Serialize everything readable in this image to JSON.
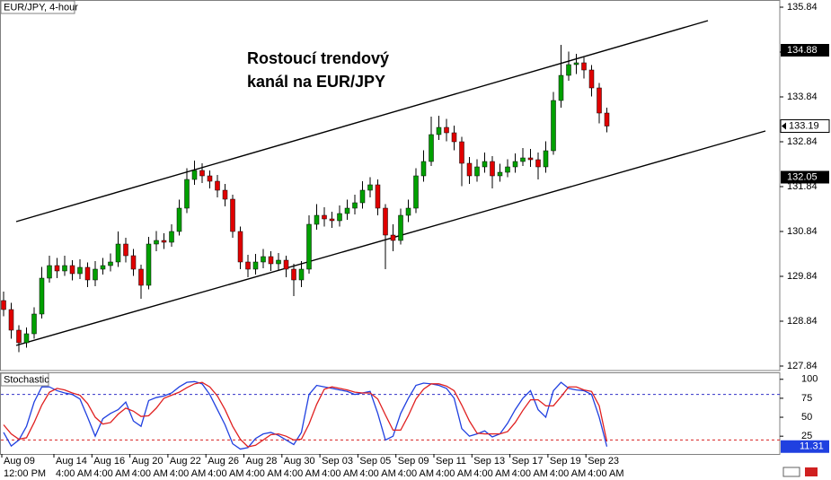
{
  "chart_data": [
    {
      "type": "candlestick",
      "title": "EUR/JPY, 4-hour",
      "annotation": [
        "Rostoucí trendový",
        "kanál na EUR/JPY"
      ],
      "up_color": "#00a000",
      "down_color": "#e00000",
      "ylim": [
        127.74,
        136.0
      ],
      "yticks": [
        135.84,
        134.84,
        133.84,
        132.84,
        131.84,
        130.84,
        129.84,
        128.84,
        127.84
      ],
      "price_markers": [
        134.88,
        132.05
      ],
      "open": [
        129.3,
        129.1,
        128.64,
        128.36,
        128.56,
        129.0,
        129.8,
        130.08,
        129.96,
        130.08,
        129.9,
        130.04,
        129.76,
        130.0,
        130.08,
        130.16,
        130.56,
        130.3,
        130.0,
        129.64,
        130.56,
        130.64,
        130.6,
        130.84,
        131.36,
        132.0,
        132.2,
        132.08,
        131.96,
        131.76,
        131.56,
        130.84,
        130.16,
        130.0,
        130.16,
        130.28,
        130.12,
        130.2,
        130.0,
        129.76,
        130.0,
        131.0,
        131.2,
        131.12,
        131.08,
        131.24,
        131.36,
        131.48,
        131.76,
        131.88,
        131.36,
        130.76,
        130.64,
        131.2,
        131.36,
        132.08,
        132.4,
        133.0,
        133.16,
        133.04,
        132.84,
        132.36,
        132.08,
        132.28,
        132.4,
        132.08,
        132.16,
        132.28,
        132.4,
        132.48,
        132.44,
        132.28,
        132.64,
        133.76,
        134.32,
        134.56,
        134.6,
        134.44,
        134.04,
        133.48
      ],
      "high": [
        129.5,
        129.25,
        128.75,
        128.7,
        129.15,
        130.05,
        130.3,
        130.25,
        130.3,
        130.2,
        130.22,
        130.15,
        130.18,
        130.25,
        130.35,
        130.84,
        130.7,
        130.45,
        130.1,
        130.72,
        130.85,
        130.8,
        131.0,
        131.55,
        132.25,
        132.42,
        132.36,
        132.2,
        132.1,
        131.9,
        131.66,
        130.95,
        130.32,
        130.34,
        130.45,
        130.4,
        130.36,
        130.3,
        130.12,
        130.18,
        131.2,
        131.45,
        131.38,
        131.28,
        131.42,
        131.55,
        131.66,
        131.96,
        132.05,
        132.0,
        131.45,
        131.0,
        131.35,
        131.55,
        132.25,
        132.65,
        133.4,
        133.42,
        133.35,
        133.2,
        132.95,
        132.5,
        132.45,
        132.6,
        132.52,
        132.35,
        132.45,
        132.58,
        132.7,
        132.68,
        132.6,
        132.85,
        133.95,
        135.0,
        134.85,
        134.8,
        134.72,
        134.55,
        134.15,
        133.6
      ],
      "low": [
        128.95,
        128.45,
        128.15,
        128.25,
        128.45,
        128.9,
        129.7,
        129.8,
        129.85,
        129.75,
        129.78,
        129.6,
        129.62,
        129.88,
        129.95,
        130.05,
        130.15,
        129.85,
        129.34,
        129.55,
        130.4,
        130.45,
        130.5,
        130.75,
        131.25,
        131.88,
        131.92,
        131.8,
        131.6,
        131.4,
        130.7,
        130.0,
        129.82,
        129.88,
        130.02,
        129.96,
        129.98,
        129.82,
        129.4,
        129.6,
        129.9,
        130.88,
        130.95,
        130.92,
        130.95,
        131.1,
        131.22,
        131.35,
        131.6,
        131.2,
        130.0,
        130.4,
        130.55,
        131.05,
        131.25,
        131.95,
        132.3,
        132.88,
        132.85,
        132.65,
        131.85,
        131.9,
        131.95,
        132.15,
        131.8,
        131.95,
        132.05,
        132.15,
        132.3,
        132.28,
        132.0,
        132.15,
        132.55,
        133.6,
        134.2,
        134.35,
        134.25,
        133.85,
        133.25,
        133.05
      ],
      "close": [
        129.1,
        128.64,
        128.36,
        128.56,
        129.0,
        129.8,
        130.08,
        129.96,
        130.08,
        129.9,
        130.04,
        129.76,
        130.0,
        130.08,
        130.16,
        130.56,
        130.3,
        130.0,
        129.64,
        130.56,
        130.64,
        130.6,
        130.84,
        131.36,
        132.0,
        132.2,
        132.08,
        131.96,
        131.76,
        131.56,
        130.84,
        130.16,
        130.0,
        130.16,
        130.28,
        130.12,
        130.2,
        130.0,
        129.76,
        130.0,
        131.0,
        131.2,
        131.12,
        131.08,
        131.24,
        131.36,
        131.48,
        131.76,
        131.88,
        131.36,
        130.76,
        130.64,
        131.2,
        131.36,
        132.08,
        132.4,
        133.0,
        133.16,
        133.04,
        132.84,
        132.36,
        132.08,
        132.28,
        132.4,
        132.08,
        132.16,
        132.28,
        132.4,
        132.48,
        132.44,
        132.28,
        132.64,
        133.76,
        134.32,
        134.56,
        134.6,
        134.44,
        134.04,
        133.48,
        133.19
      ]
    },
    {
      "type": "line",
      "title": "Stochastic",
      "ylim": [
        -2,
        108
      ],
      "yticks": [
        100,
        75,
        50,
        25
      ],
      "levels": [
        {
          "value": 80,
          "color": "#3030c8"
        },
        {
          "value": 20,
          "color": "#d82020"
        }
      ],
      "series": [
        {
          "color": "#2040e0",
          "values": [
            30,
            12,
            20,
            38,
            70,
            90,
            90,
            85,
            82,
            80,
            74,
            50,
            25,
            48,
            55,
            60,
            70,
            45,
            38,
            72,
            76,
            78,
            82,
            90,
            96,
            97,
            94,
            80,
            60,
            40,
            15,
            8,
            10,
            22,
            28,
            30,
            26,
            20,
            14,
            30,
            80,
            92,
            90,
            88,
            86,
            84,
            80,
            82,
            84,
            55,
            20,
            25,
            55,
            75,
            92,
            95,
            94,
            92,
            88,
            75,
            35,
            25,
            28,
            32,
            24,
            28,
            42,
            60,
            75,
            85,
            60,
            50,
            85,
            96,
            88,
            86,
            85,
            80,
            50,
            11.31
          ]
        },
        {
          "color": "#e02020",
          "values": [
            40,
            28,
            21,
            23,
            43,
            66,
            83,
            88,
            86,
            82,
            79,
            68,
            50,
            41,
            43,
            54,
            62,
            58,
            51,
            52,
            62,
            75,
            79,
            83,
            89,
            94,
            96,
            90,
            78,
            60,
            38,
            21,
            11,
            13,
            20,
            27,
            28,
            25,
            20,
            21,
            41,
            67,
            87,
            90,
            88,
            86,
            83,
            82,
            82,
            74,
            53,
            33,
            33,
            52,
            74,
            87,
            94,
            94,
            91,
            85,
            66,
            45,
            29,
            28,
            28,
            28,
            31,
            43,
            59,
            73,
            73,
            65,
            65,
            77,
            90,
            90,
            86,
            84,
            65,
            18
          ]
        }
      ]
    }
  ],
  "time_axis": {
    "dates": [
      "Aug 09",
      "Aug 14",
      "Aug 16",
      "Aug 20",
      "Aug 22",
      "Aug 26",
      "Aug 28",
      "Aug 30",
      "Sep 03",
      "Sep 05",
      "Sep 09",
      "Sep 11",
      "Sep 13",
      "Sep 17",
      "Sep 19",
      "Sep 23"
    ],
    "times": [
      "12:00 PM",
      "4:00 AM",
      "4:00 AM",
      "4:00 AM",
      "4:00 AM",
      "4:00 AM",
      "4:00 AM",
      "4:00 AM",
      "4:00 AM",
      "4:00 AM",
      "4:00 AM",
      "4:00 AM",
      "4:00 AM",
      "4:00 AM",
      "4:00 AM",
      "4:00 AM"
    ]
  }
}
